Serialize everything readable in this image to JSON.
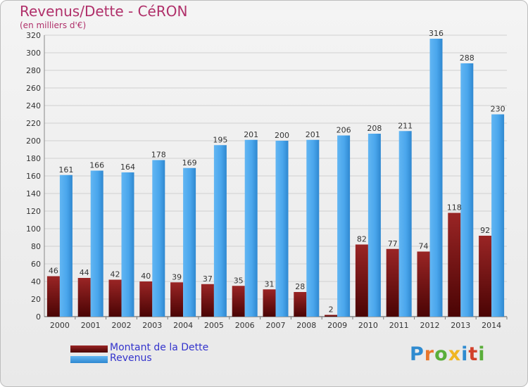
{
  "page": {
    "title": "Revenus/Dette - CéRON",
    "subtitle": "(en milliers d'€)"
  },
  "logo": {
    "text": "Proxiti",
    "colors": [
      "#2f8bd0",
      "#e8762c",
      "#5aae3a",
      "#f0b622",
      "#2f8bd0",
      "#d2412b",
      "#5aae3a"
    ]
  },
  "chart_data": {
    "type": "bar",
    "title": "Revenus/Dette - CéRON",
    "subtitle": "(en milliers d'€)",
    "xlabel": "",
    "ylabel": "",
    "ylim": [
      0,
      320
    ],
    "ytick_step": 20,
    "grid": true,
    "legend_position": "bottom-left",
    "categories": [
      "2000",
      "2001",
      "2002",
      "2003",
      "2004",
      "2005",
      "2006",
      "2007",
      "2008",
      "2009",
      "2010",
      "2011",
      "2012",
      "2013",
      "2014"
    ],
    "series": [
      {
        "name": "Montant de la Dette",
        "color": "#7a0f0f",
        "values": [
          46,
          44,
          42,
          40,
          39,
          37,
          35,
          31,
          28,
          2,
          82,
          77,
          74,
          118,
          92
        ]
      },
      {
        "name": "Revenus",
        "color": "#3f9ee8",
        "values": [
          161,
          166,
          164,
          178,
          169,
          195,
          201,
          200,
          201,
          206,
          208,
          211,
          316,
          288,
          230
        ]
      }
    ]
  }
}
